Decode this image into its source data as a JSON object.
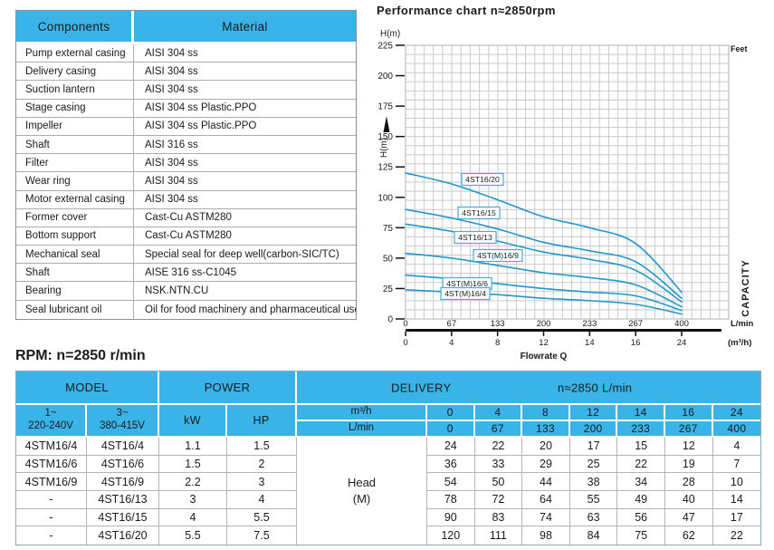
{
  "colors": {
    "header_blue": "#3ab4e8",
    "curve_blue": "#2196cf",
    "curve_label_border": "#4aa8da",
    "grid": "#c9c9c9",
    "plot_border": "#b0b0b0",
    "border_gray": "#adadad"
  },
  "components_table": {
    "headers": [
      "Components",
      "Material"
    ],
    "rows": [
      [
        "Pump external casing",
        "AISI 304 ss"
      ],
      [
        "Delivery casing",
        "AISI 304 ss"
      ],
      [
        "Suction lantern",
        "AISI 304 ss"
      ],
      [
        "Stage casing",
        "AISI 304 ss Plastic.PPO"
      ],
      [
        "Impeller",
        "AISI 304 ss Plastic.PPO"
      ],
      [
        "Shaft",
        "AISI 316 ss"
      ],
      [
        "Filter",
        "AISI 304 ss"
      ],
      [
        "Wear ring",
        "AISI 304 ss"
      ],
      [
        "Motor external casing",
        "AISI 304 ss"
      ],
      [
        "Former cover",
        "Cast-Cu ASTM280"
      ],
      [
        "Bottom support",
        "Cast-Cu ASTM280"
      ],
      [
        "Mechanical seal",
        "Special seal for deep well(carbon-SIC/TC)"
      ],
      [
        "Shaft",
        "AISE 316 ss-C1045"
      ],
      [
        "Bearing",
        "NSK.NTN.CU"
      ],
      [
        "Seal lubricant oil",
        "Oil for food machinery and pharmaceutical use."
      ]
    ]
  },
  "chart_data": {
    "type": "line",
    "title": "Performance chart n≈2850rpm",
    "y_axis_label": "H(m)",
    "y_unit_right": "Feet",
    "right_label": "CAPACITY",
    "x_axis_label": "Flowrate Q",
    "x_unit_primary": "L/min",
    "x_unit_secondary": "(m³/h)",
    "x_lmin": [
      0,
      67,
      133,
      200,
      233,
      267,
      400
    ],
    "x_m3h": [
      0,
      4,
      8,
      12,
      14,
      16,
      24
    ],
    "ylim": [
      0,
      225
    ],
    "y_ticks": [
      0,
      25,
      50,
      75,
      100,
      125,
      150,
      175,
      200,
      225
    ],
    "grid": true,
    "legend_position": "on-curve-boxes",
    "series": [
      {
        "name": "4ST16/20",
        "values": [
          120,
          111,
          98,
          84,
          75,
          62,
          22
        ]
      },
      {
        "name": "4ST16/15",
        "values": [
          90,
          83,
          74,
          63,
          56,
          47,
          17
        ]
      },
      {
        "name": "4ST16/13",
        "values": [
          78,
          72,
          64,
          55,
          49,
          40,
          14
        ]
      },
      {
        "name": "4ST(M)16/9",
        "values": [
          54,
          50,
          44,
          38,
          34,
          28,
          10
        ]
      },
      {
        "name": "4ST(M)16/6",
        "values": [
          36,
          33,
          29,
          25,
          22,
          19,
          7
        ]
      },
      {
        "name": "4ST(M)16/4",
        "values": [
          24,
          22,
          20,
          17,
          15,
          12,
          4
        ]
      }
    ]
  },
  "rpm_title": "RPM: n=2850 r/min",
  "spec_table": {
    "group_headers": {
      "model": "MODEL",
      "power": "POWER",
      "delivery": "DELIVERY",
      "delivery_note": "n≈2850 L/min"
    },
    "sub_headers": {
      "col1_l1": "1~",
      "col1_l2": "220-240V",
      "col2_l1": "3~",
      "col2_l2": "380-415V",
      "kw": "kW",
      "hp": "HP",
      "m3h": "m³/h",
      "lmin": "L/min"
    },
    "flow_m3h": [
      "0",
      "4",
      "8",
      "12",
      "14",
      "16",
      "24"
    ],
    "flow_lmin": [
      "0",
      "67",
      "133",
      "200",
      "233",
      "267",
      "400"
    ],
    "head_label": "Head",
    "head_unit": "(M)",
    "rows": [
      {
        "model1": "4STM16/4",
        "model2": "4ST16/4",
        "kw": "1.1",
        "hp": "1.5",
        "heads": [
          "24",
          "22",
          "20",
          "17",
          "15",
          "12",
          "4"
        ]
      },
      {
        "model1": "4STM16/6",
        "model2": "4ST16/6",
        "kw": "1.5",
        "hp": "2",
        "heads": [
          "36",
          "33",
          "29",
          "25",
          "22",
          "19",
          "7"
        ]
      },
      {
        "model1": "4STM16/9",
        "model2": "4ST16/9",
        "kw": "2.2",
        "hp": "3",
        "heads": [
          "54",
          "50",
          "44",
          "38",
          "34",
          "28",
          "10"
        ]
      },
      {
        "model1": "-",
        "model2": "4ST16/13",
        "kw": "3",
        "hp": "4",
        "heads": [
          "78",
          "72",
          "64",
          "55",
          "49",
          "40",
          "14"
        ]
      },
      {
        "model1": "-",
        "model2": "4ST16/15",
        "kw": "4",
        "hp": "5.5",
        "heads": [
          "90",
          "83",
          "74",
          "63",
          "56",
          "47",
          "17"
        ]
      },
      {
        "model1": "-",
        "model2": "4ST16/20",
        "kw": "5.5",
        "hp": "7.5",
        "heads": [
          "120",
          "111",
          "98",
          "84",
          "75",
          "62",
          "22"
        ]
      }
    ]
  }
}
